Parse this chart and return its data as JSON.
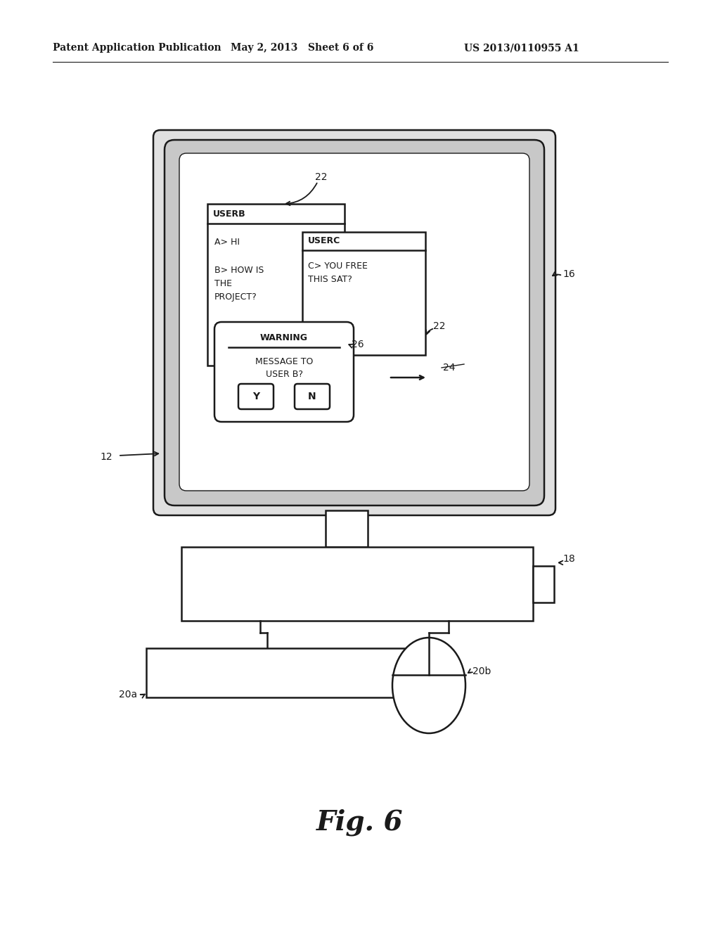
{
  "header_left": "Patent Application Publication",
  "header_mid": "May 2, 2013   Sheet 6 of 6",
  "header_right": "US 2013/0110955 A1",
  "fig_label": "Fig. 6",
  "bg_color": "#ffffff",
  "line_color": "#1a1a1a"
}
